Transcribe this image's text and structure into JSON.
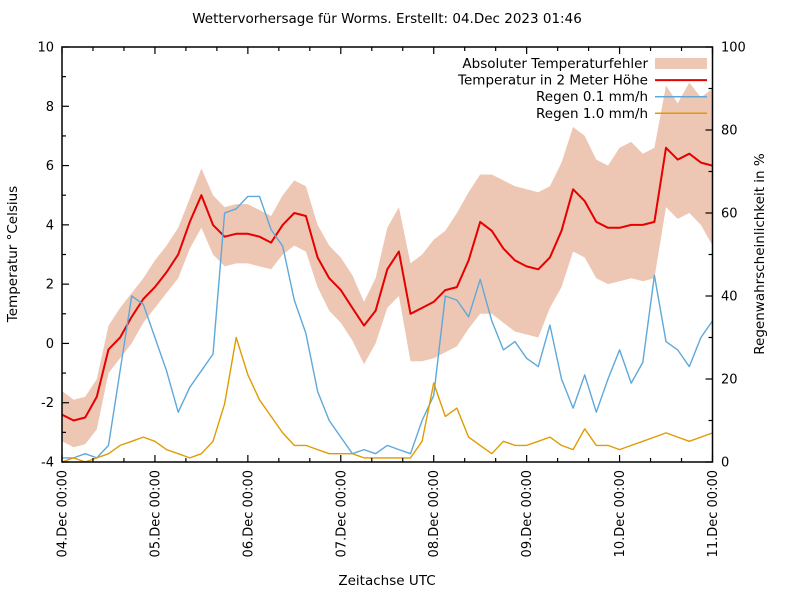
{
  "title": "Wettervorhersage für Worms. Erstellt: 04.Dec 2023 01:46",
  "axes": {
    "x": {
      "label": "Zeitachse UTC",
      "tick_labels": [
        "04.Dec 00:00",
        "05.Dec 00:00",
        "06.Dec 00:00",
        "07.Dec 00:00",
        "08.Dec 00:00",
        "09.Dec 00:00",
        "10.Dec 00:00",
        "11.Dec 00:00"
      ],
      "major_tick_hours": 24,
      "minor_tick_hours": 8,
      "range_hours": [
        0,
        168
      ]
    },
    "y_left": {
      "label": "Temperatur °Celsius",
      "tick_labels": [
        "-4",
        "-2",
        "0",
        "2",
        "4",
        "6",
        "8",
        "10"
      ],
      "range": [
        -4,
        10
      ],
      "major_step": 2,
      "minor_step": 1
    },
    "y_right": {
      "label": "Regenwahrscheinlichkeit in %",
      "tick_labels": [
        "0",
        "20",
        "40",
        "60",
        "80",
        "100"
      ],
      "range": [
        0,
        100
      ],
      "major_step": 20,
      "minor_step": 10
    }
  },
  "legend": {
    "items": [
      {
        "label": "Absoluter Temperaturfehler",
        "type": "band",
        "color": "#edc7b4"
      },
      {
        "label": "Temperatur in 2 Meter Höhe",
        "type": "line",
        "color": "#e60000"
      },
      {
        "label": "Regen 0.1 mm/h",
        "type": "line",
        "color": "#5fa8da"
      },
      {
        "label": "Regen 1.0 mm/h",
        "type": "line",
        "color": "#e09b00"
      }
    ]
  },
  "colors": {
    "band": "#edc7b4",
    "temperature_line": "#e60000",
    "rain01_line": "#5fa8da",
    "rain10_line": "#e09b00",
    "axis": "#000000",
    "background": "#ffffff"
  },
  "chart_data": {
    "type": "line",
    "title": "Wettervorhersage für Worms. Erstellt: 04.Dec 2023 01:46",
    "xlabel": "Zeitachse UTC",
    "ylabel_left": "Temperatur °Celsius",
    "ylabel_right": "Regenwahrscheinlichkeit in %",
    "xlim_hours": [
      0,
      168
    ],
    "x_day_labels": [
      "04.Dec 00:00",
      "05.Dec 00:00",
      "06.Dec 00:00",
      "07.Dec 00:00",
      "08.Dec 00:00",
      "09.Dec 00:00",
      "10.Dec 00:00",
      "11.Dec 00:00"
    ],
    "ylim_left": [
      -4,
      10
    ],
    "ylim_right": [
      0,
      100
    ],
    "grid": false,
    "legend_position": "top-right-inside",
    "x_hours": [
      0,
      3,
      6,
      9,
      12,
      15,
      18,
      21,
      24,
      27,
      30,
      33,
      36,
      39,
      42,
      45,
      48,
      51,
      54,
      57,
      60,
      63,
      66,
      69,
      72,
      75,
      78,
      81,
      84,
      87,
      90,
      93,
      96,
      99,
      102,
      105,
      108,
      111,
      114,
      117,
      120,
      123,
      126,
      129,
      132,
      135,
      138,
      141,
      144,
      147,
      150,
      153,
      156,
      159,
      162,
      165,
      168
    ],
    "series": [
      {
        "name": "Absoluter Temperaturfehler",
        "type": "band",
        "axis": "left",
        "color": "#edc7b4",
        "upper": [
          -1.6,
          -1.9,
          -1.8,
          -1.2,
          0.6,
          1.2,
          1.7,
          2.2,
          2.8,
          3.3,
          3.9,
          4.9,
          5.9,
          5.0,
          4.6,
          4.7,
          4.7,
          4.5,
          4.3,
          5.0,
          5.5,
          5.3,
          4.0,
          3.3,
          2.9,
          2.3,
          1.4,
          2.2,
          3.9,
          4.6,
          2.7,
          3.0,
          3.5,
          3.8,
          4.4,
          5.1,
          5.7,
          5.7,
          5.5,
          5.3,
          5.2,
          5.1,
          5.3,
          6.1,
          7.3,
          7.0,
          6.2,
          6.0,
          6.6,
          6.8,
          6.4,
          6.6,
          8.7,
          8.1,
          8.8,
          8.3,
          8.6
        ],
        "lower": [
          -3.3,
          -3.5,
          -3.4,
          -2.9,
          -1.0,
          -0.5,
          0.0,
          0.7,
          1.2,
          1.7,
          2.2,
          3.2,
          3.9,
          3.0,
          2.6,
          2.7,
          2.7,
          2.6,
          2.5,
          3.0,
          3.3,
          3.1,
          1.9,
          1.1,
          0.7,
          0.1,
          -0.7,
          0.0,
          1.2,
          1.6,
          -0.6,
          -0.6,
          -0.5,
          -0.3,
          -0.1,
          0.5,
          1.0,
          1.0,
          0.7,
          0.4,
          0.3,
          0.2,
          1.2,
          1.9,
          3.1,
          2.9,
          2.2,
          2.0,
          2.1,
          2.2,
          2.1,
          2.2,
          4.6,
          4.2,
          4.4,
          4.0,
          3.3
        ]
      },
      {
        "name": "Temperatur in 2 Meter Höhe",
        "type": "line",
        "axis": "left",
        "unit": "°C",
        "color": "#e60000",
        "values": [
          -2.4,
          -2.6,
          -2.5,
          -1.8,
          -0.2,
          0.2,
          0.9,
          1.5,
          1.9,
          2.4,
          3.0,
          4.1,
          5.0,
          4.0,
          3.6,
          3.7,
          3.7,
          3.6,
          3.4,
          4.0,
          4.4,
          4.3,
          2.9,
          2.2,
          1.8,
          1.2,
          0.6,
          1.1,
          2.5,
          3.1,
          1.0,
          1.2,
          1.4,
          1.8,
          1.9,
          2.8,
          4.1,
          3.8,
          3.2,
          2.8,
          2.6,
          2.5,
          2.9,
          3.8,
          5.2,
          4.8,
          4.1,
          3.9,
          3.9,
          4.0,
          4.0,
          4.1,
          6.6,
          6.2,
          6.4,
          6.1,
          6.0
        ]
      },
      {
        "name": "Regen 0.1 mm/h",
        "type": "line",
        "axis": "right",
        "unit": "%",
        "color": "#5fa8da",
        "values": [
          1,
          1,
          2,
          1,
          4,
          22,
          40,
          38,
          30,
          22,
          12,
          18,
          22,
          26,
          60,
          61,
          64,
          64,
          56,
          52,
          39,
          31,
          17,
          10,
          6,
          2,
          3,
          2,
          4,
          3,
          2,
          10,
          16,
          40,
          39,
          35,
          44,
          34,
          27,
          29,
          25,
          23,
          33,
          20,
          13,
          21,
          12,
          20,
          27,
          19,
          24,
          45,
          29,
          27,
          23,
          30,
          34
        ]
      },
      {
        "name": "Regen 1.0 mm/h",
        "type": "line",
        "axis": "right",
        "unit": "%",
        "color": "#e09b00",
        "values": [
          0,
          1,
          0,
          1,
          2,
          4,
          5,
          6,
          5,
          3,
          2,
          1,
          2,
          5,
          14,
          30,
          21,
          15,
          11,
          7,
          4,
          4,
          3,
          2,
          2,
          2,
          1,
          1,
          1,
          1,
          1,
          5,
          19,
          11,
          13,
          6,
          4,
          2,
          5,
          4,
          4,
          5,
          6,
          4,
          3,
          8,
          4,
          4,
          3,
          4,
          5,
          6,
          7,
          6,
          5,
          6,
          7
        ]
      }
    ]
  }
}
